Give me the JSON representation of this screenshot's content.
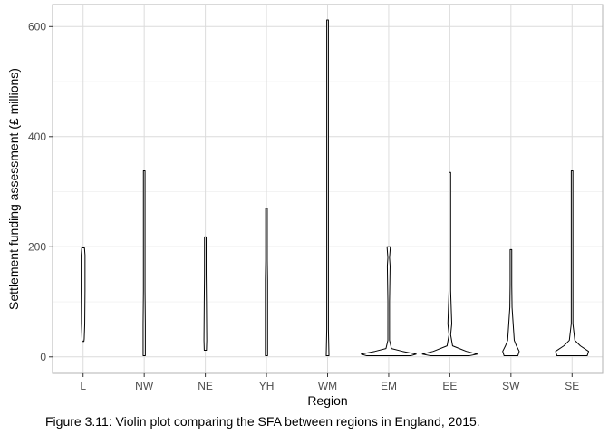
{
  "chart_data": {
    "type": "violin",
    "xlabel": "Region",
    "ylabel": "Settlement funding assessment (£ millions)",
    "categories": [
      "L",
      "NW",
      "NE",
      "YH",
      "WM",
      "EM",
      "EE",
      "SW",
      "SE"
    ],
    "yticks": [
      0,
      200,
      400,
      600
    ],
    "ylim": [
      -30,
      640
    ],
    "grid": true,
    "violins": [
      {
        "category": "L",
        "profile": [
          [
            28,
            0.02
          ],
          [
            32,
            0.04
          ],
          [
            60,
            0.06
          ],
          [
            120,
            0.07
          ],
          [
            160,
            0.07
          ],
          [
            185,
            0.07
          ],
          [
            198,
            0.05
          ]
        ]
      },
      {
        "category": "NW",
        "profile": [
          [
            2,
            0.04
          ],
          [
            60,
            0.04
          ],
          [
            120,
            0.02
          ],
          [
            175,
            0.01
          ],
          [
            250,
            0.005
          ],
          [
            338,
            0.003
          ]
        ]
      },
      {
        "category": "NE",
        "profile": [
          [
            12,
            0.04
          ],
          [
            30,
            0.05
          ],
          [
            100,
            0.04
          ],
          [
            150,
            0.03
          ],
          [
            200,
            0.01
          ],
          [
            218,
            0.004
          ]
        ]
      },
      {
        "category": "YH",
        "profile": [
          [
            2,
            0.04
          ],
          [
            80,
            0.04
          ],
          [
            140,
            0.04
          ],
          [
            175,
            0.01
          ],
          [
            220,
            0.004
          ],
          [
            270,
            0.003
          ]
        ]
      },
      {
        "category": "WM",
        "profile": [
          [
            2,
            0.05
          ],
          [
            50,
            0.03
          ],
          [
            100,
            0.01
          ],
          [
            215,
            0.005
          ],
          [
            300,
            0.002
          ],
          [
            612,
            0.002
          ]
        ]
      },
      {
        "category": "EM",
        "profile": [
          [
            2,
            0.8
          ],
          [
            5,
            1.0
          ],
          [
            10,
            0.5
          ],
          [
            15,
            0.1
          ],
          [
            30,
            0.03
          ],
          [
            100,
            0.02
          ],
          [
            165,
            0.05
          ],
          [
            180,
            0.03
          ],
          [
            200,
            0.06
          ]
        ]
      },
      {
        "category": "EE",
        "profile": [
          [
            2,
            0.7
          ],
          [
            5,
            1.0
          ],
          [
            10,
            0.6
          ],
          [
            20,
            0.1
          ],
          [
            40,
            0.03
          ],
          [
            60,
            0.07
          ],
          [
            120,
            0.01
          ],
          [
            250,
            0.005
          ],
          [
            335,
            0.005
          ]
        ]
      },
      {
        "category": "SW",
        "profile": [
          [
            2,
            0.25
          ],
          [
            10,
            0.3
          ],
          [
            20,
            0.2
          ],
          [
            30,
            0.12
          ],
          [
            60,
            0.08
          ],
          [
            90,
            0.04
          ],
          [
            130,
            0.01
          ],
          [
            195,
            0.004
          ]
        ]
      },
      {
        "category": "SE",
        "profile": [
          [
            2,
            0.55
          ],
          [
            10,
            0.6
          ],
          [
            20,
            0.3
          ],
          [
            30,
            0.1
          ],
          [
            60,
            0.03
          ],
          [
            160,
            0.01
          ],
          [
            230,
            0.02
          ],
          [
            300,
            0.005
          ],
          [
            338,
            0.004
          ]
        ]
      }
    ]
  },
  "caption": "Figure 3.11: Violin plot comparing the SFA between regions in England, 2015."
}
